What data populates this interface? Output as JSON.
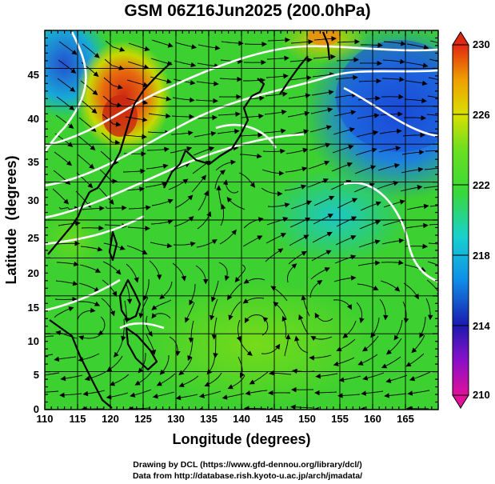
{
  "title": "GSM 06Z16Jun2025 (200.0hPa)",
  "axes": {
    "xlabel": "Longitude (degrees)",
    "ylabel": "Latitude  (degrees)",
    "xrange": [
      110,
      170
    ],
    "yrange": [
      0,
      50
    ],
    "xticks": [
      "110",
      "115",
      "120",
      "125",
      "130",
      "135",
      "140",
      "145",
      "150",
      "155",
      "160",
      "165"
    ],
    "yticks": [
      "0",
      "5",
      "10",
      "15",
      "20",
      "25",
      "30",
      "35",
      "40",
      "45"
    ]
  },
  "colorbar": {
    "labels": [
      "230",
      "226",
      "222",
      "218",
      "214",
      "210"
    ],
    "range": [
      210,
      230
    ],
    "colors": [
      "#e0109a",
      "#1a1ab0",
      "#0f8fe8",
      "#18d0d0",
      "#38d838",
      "#6ae020",
      "#d8e000",
      "#f0a000",
      "#e02810"
    ]
  },
  "field": {
    "cold_pool_northeast": "#1c4fd8",
    "cold_pool_northwest": "#2a6ad0",
    "warm_jet": "#d83a10",
    "background": "#3cd030"
  },
  "credits": {
    "line1": "Drawing by DCL (https://www.gfd-dennou.org/library/dcl/)",
    "line2": "Data from http://database.rish.kyoto-u.ac.jp/arch/jmadata/"
  }
}
